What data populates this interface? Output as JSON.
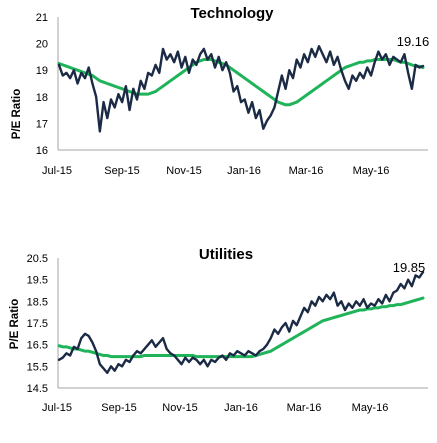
{
  "chart_data": [
    {
      "type": "line",
      "title": "Technology",
      "ylabel": "P/E Ratio",
      "ylim": [
        16,
        21
      ],
      "yticks": [
        "16",
        "17",
        "18",
        "19",
        "20",
        "21"
      ],
      "x_tick_labels": [
        "Jul-15",
        "Sep-15",
        "Nov-15",
        "Jan-16",
        "Mar-16",
        "May-16"
      ],
      "annotation": "19.16",
      "series": [
        {
          "color": "#1b2a45",
          "values": [
            19.2,
            18.8,
            18.9,
            18.7,
            19.0,
            18.5,
            18.9,
            18.7,
            19.1,
            18.5,
            18.0,
            16.7,
            17.8,
            17.2,
            17.9,
            17.6,
            18.1,
            17.8,
            18.4,
            17.5,
            18.3,
            17.9,
            18.6,
            18.3,
            18.9,
            18.8,
            19.2,
            18.9,
            19.8,
            19.4,
            19.6,
            19.3,
            19.7,
            19.1,
            19.5,
            18.9,
            19.4,
            19.2,
            19.6,
            19.8,
            19.4,
            19.6,
            19.1,
            19.5,
            19.0,
            19.3,
            18.9,
            18.2,
            18.4,
            17.8,
            17.9,
            17.4,
            17.8,
            17.2,
            17.5,
            16.8,
            17.1,
            17.3,
            17.6,
            18.2,
            18.8,
            18.3,
            19.0,
            18.7,
            19.4,
            19.1,
            19.6,
            19.3,
            19.8,
            19.5,
            19.9,
            19.6,
            19.3,
            19.7,
            19.2,
            19.5,
            19.0,
            18.6,
            18.3,
            18.8,
            18.6,
            18.9,
            18.7,
            19.1,
            18.8,
            19.3,
            19.7,
            19.4,
            19.6,
            19.2,
            19.5,
            19.4,
            19.3,
            19.6,
            18.9,
            18.3,
            19.2,
            19.1,
            19.16
          ],
          "name": ""
        },
        {
          "color": "#1fb35a",
          "values": [
            19.25,
            19.2,
            19.15,
            19.1,
            19.05,
            19.0,
            18.95,
            18.9,
            18.85,
            18.8,
            18.7,
            18.6,
            18.55,
            18.5,
            18.45,
            18.4,
            18.35,
            18.3,
            18.25,
            18.2,
            18.15,
            18.1,
            18.1,
            18.1,
            18.1,
            18.15,
            18.2,
            18.3,
            18.4,
            18.5,
            18.6,
            18.7,
            18.8,
            18.9,
            19.0,
            19.1,
            19.2,
            19.3,
            19.35,
            19.4,
            19.4,
            19.4,
            19.35,
            19.3,
            19.25,
            19.2,
            19.1,
            19.0,
            18.9,
            18.8,
            18.7,
            18.6,
            18.5,
            18.4,
            18.3,
            18.2,
            18.1,
            18.0,
            17.9,
            17.8,
            17.75,
            17.7,
            17.7,
            17.75,
            17.8,
            17.9,
            18.0,
            18.1,
            18.2,
            18.3,
            18.4,
            18.5,
            18.6,
            18.7,
            18.8,
            18.9,
            19.0,
            19.1,
            19.15,
            19.2,
            19.25,
            19.3,
            19.3,
            19.35,
            19.35,
            19.4,
            19.4,
            19.4,
            19.4,
            19.4,
            19.4,
            19.35,
            19.3,
            19.3,
            19.25,
            19.2,
            19.15,
            19.15,
            19.1
          ],
          "name": ""
        }
      ]
    },
    {
      "type": "line",
      "title": "Utilities",
      "ylabel": "P/E Ratio",
      "ylim": [
        14.5,
        20.5
      ],
      "yticks": [
        "14.5",
        "15.5",
        "16.5",
        "17.5",
        "18.5",
        "19.5",
        "20.5"
      ],
      "x_tick_labels": [
        "Jul-15",
        "Sep-15",
        "Nov-15",
        "Jan-16",
        "Mar-16",
        "May-16"
      ],
      "annotation": "19.85",
      "series": [
        {
          "color": "#1b2a45",
          "values": [
            15.8,
            15.9,
            16.1,
            16.0,
            16.4,
            16.3,
            16.8,
            17.0,
            16.9,
            16.6,
            16.2,
            15.6,
            15.4,
            15.2,
            15.5,
            15.3,
            15.6,
            15.5,
            15.8,
            15.7,
            16.0,
            16.2,
            16.1,
            16.3,
            16.5,
            16.7,
            16.4,
            16.6,
            16.8,
            16.3,
            16.1,
            16.0,
            15.8,
            15.6,
            15.9,
            15.7,
            15.9,
            15.8,
            15.6,
            15.8,
            15.5,
            15.8,
            15.7,
            15.9,
            16.0,
            15.8,
            16.1,
            16.0,
            16.2,
            16.1,
            16.0,
            16.2,
            16.1,
            16.0,
            16.2,
            16.3,
            16.5,
            16.8,
            17.2,
            17.0,
            17.3,
            17.5,
            17.1,
            17.6,
            17.4,
            17.8,
            18.2,
            18.0,
            18.5,
            18.3,
            18.7,
            18.5,
            18.8,
            18.6,
            18.9,
            18.3,
            18.5,
            18.1,
            18.4,
            18.2,
            18.5,
            18.3,
            18.6,
            18.2,
            18.4,
            18.3,
            18.6,
            18.4,
            18.8,
            18.5,
            18.9,
            19.0,
            19.3,
            19.1,
            19.5,
            19.2,
            19.7,
            19.6,
            19.85
          ],
          "name": ""
        },
        {
          "color": "#1fb35a",
          "values": [
            16.45,
            16.4,
            16.4,
            16.35,
            16.3,
            16.3,
            16.25,
            16.2,
            16.2,
            16.15,
            16.1,
            16.05,
            16.0,
            16.0,
            15.95,
            15.95,
            15.95,
            15.95,
            15.95,
            15.95,
            15.95,
            15.95,
            15.95,
            16.0,
            16.0,
            16.0,
            16.0,
            16.0,
            16.0,
            16.0,
            16.0,
            16.0,
            16.0,
            16.0,
            16.0,
            16.0,
            16.0,
            15.95,
            15.95,
            15.95,
            15.95,
            15.95,
            15.95,
            15.95,
            15.95,
            15.95,
            15.95,
            15.95,
            15.95,
            15.95,
            15.95,
            15.95,
            15.95,
            16.0,
            16.05,
            16.1,
            16.15,
            16.2,
            16.3,
            16.4,
            16.5,
            16.6,
            16.7,
            16.8,
            16.9,
            17.0,
            17.1,
            17.2,
            17.3,
            17.4,
            17.5,
            17.6,
            17.65,
            17.7,
            17.75,
            17.8,
            17.85,
            17.9,
            17.95,
            18.0,
            18.05,
            18.1,
            18.1,
            18.15,
            18.15,
            18.2,
            18.2,
            18.25,
            18.25,
            18.3,
            18.3,
            18.35,
            18.35,
            18.4,
            18.45,
            18.5,
            18.55,
            18.6,
            18.65
          ],
          "name": ""
        }
      ]
    }
  ]
}
